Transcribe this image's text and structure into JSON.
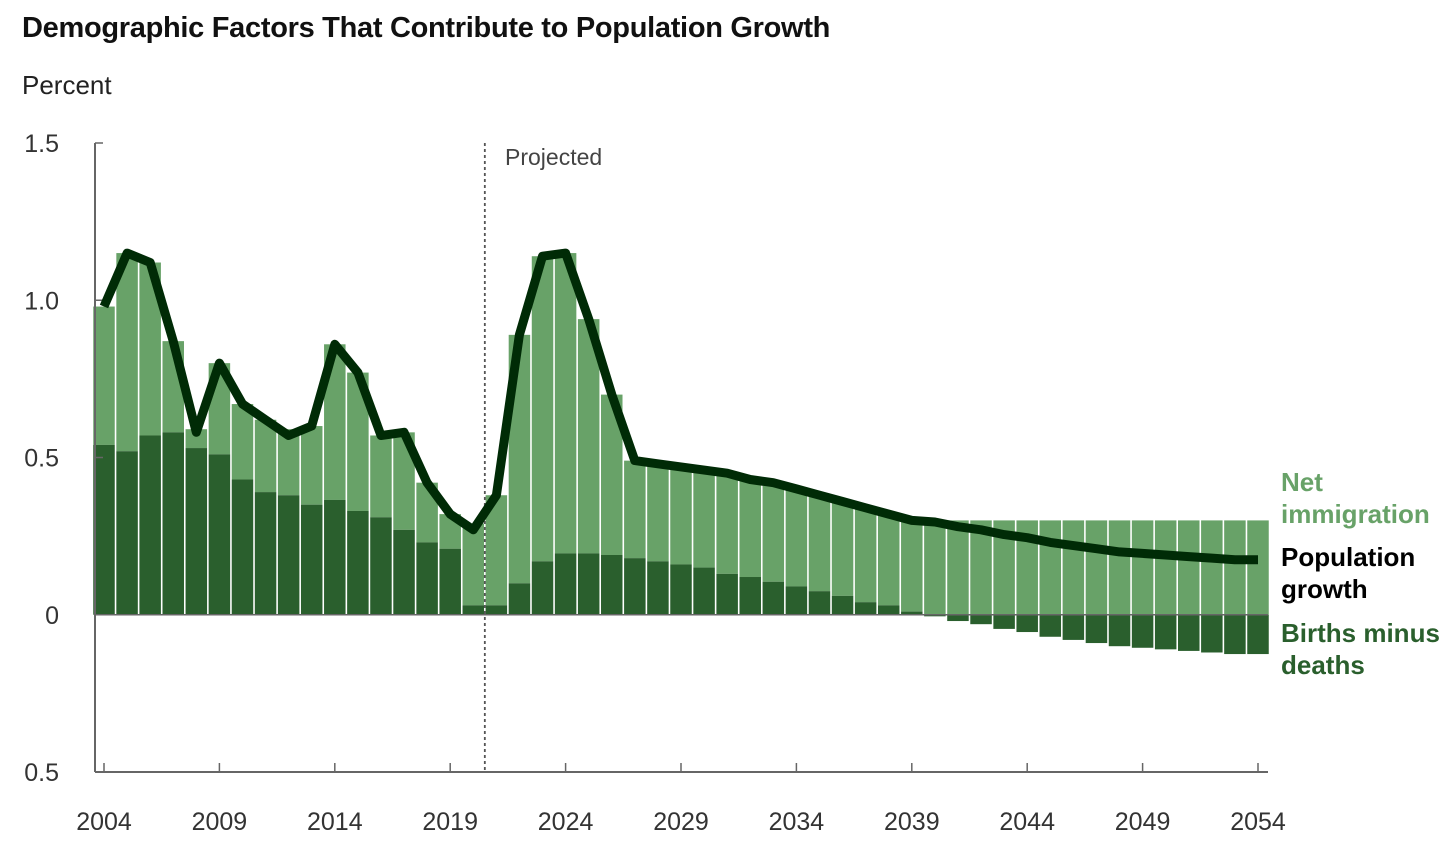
{
  "chart_data": {
    "type": "bar",
    "title": "Demographic Factors That Contribute to Population Growth",
    "ylabel": "Percent",
    "xlabel": "",
    "ylim": [
      -0.5,
      1.5
    ],
    "ytick_values": [
      1.5,
      1.0,
      0.5,
      0,
      -0.5
    ],
    "ytick_labels": [
      "1.5",
      "1.0",
      "0.5",
      "0",
      "0.5"
    ],
    "xtick_labels": [
      "2004",
      "2009",
      "2014",
      "2019",
      "2024",
      "2029",
      "2034",
      "2039",
      "2044",
      "2049",
      "2054"
    ],
    "annotation": "Projected",
    "projection_start": 2020.5,
    "start_year": 2004,
    "colors": {
      "net_immigration": "#68a268",
      "births_minus_deaths": "#2a5f2d",
      "population_growth": "#002b06"
    },
    "series": [
      {
        "name": "Births minus deaths",
        "label_lines": [
          "Births minus",
          "deaths"
        ],
        "values": [
          0.54,
          0.52,
          0.57,
          0.58,
          0.53,
          0.51,
          0.43,
          0.39,
          0.38,
          0.35,
          0.365,
          0.33,
          0.31,
          0.27,
          0.23,
          0.21,
          0.03,
          0.03,
          0.1,
          0.17,
          0.195,
          0.195,
          0.19,
          0.18,
          0.17,
          0.16,
          0.15,
          0.13,
          0.12,
          0.105,
          0.09,
          0.075,
          0.06,
          0.04,
          0.03,
          0.01,
          -0.005,
          -0.02,
          -0.03,
          -0.045,
          -0.055,
          -0.07,
          -0.08,
          -0.09,
          -0.1,
          -0.105,
          -0.11,
          -0.115,
          -0.12,
          -0.125,
          -0.125
        ]
      },
      {
        "name": "Net immigration",
        "label_lines": [
          "Net",
          "immigration"
        ],
        "values": [
          0.44,
          0.63,
          0.55,
          0.29,
          0.06,
          0.29,
          0.24,
          0.23,
          0.21,
          0.25,
          0.495,
          0.44,
          0.26,
          0.31,
          0.19,
          0.11,
          0.26,
          0.35,
          0.79,
          0.97,
          0.955,
          0.745,
          0.51,
          0.31,
          0.31,
          0.31,
          0.31,
          0.32,
          0.31,
          0.315,
          0.31,
          0.305,
          0.3,
          0.3,
          0.29,
          0.29,
          0.3,
          0.3,
          0.3,
          0.3,
          0.3,
          0.3,
          0.3,
          0.3,
          0.3,
          0.3,
          0.3,
          0.3,
          0.3,
          0.3,
          0.3
        ]
      },
      {
        "name": "Population growth",
        "label_lines": [
          "Population",
          "growth"
        ],
        "values": [
          0.98,
          1.15,
          1.12,
          0.87,
          0.58,
          0.8,
          0.67,
          0.62,
          0.57,
          0.6,
          0.86,
          0.77,
          0.57,
          0.58,
          0.42,
          0.32,
          0.27,
          0.38,
          0.89,
          1.14,
          1.15,
          0.94,
          0.7,
          0.49,
          0.48,
          0.47,
          0.46,
          0.45,
          0.43,
          0.42,
          0.4,
          0.38,
          0.36,
          0.34,
          0.32,
          0.3,
          0.295,
          0.28,
          0.27,
          0.255,
          0.245,
          0.23,
          0.22,
          0.21,
          0.2,
          0.195,
          0.19,
          0.185,
          0.18,
          0.175,
          0.175
        ]
      }
    ]
  }
}
